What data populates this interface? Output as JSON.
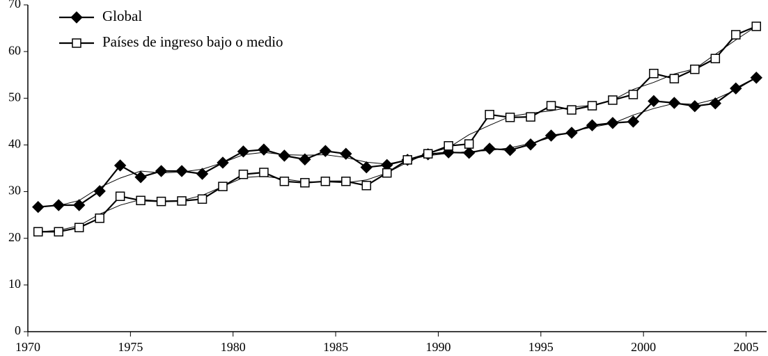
{
  "chart_data": {
    "type": "line",
    "x": [
      1970.5,
      1971.5,
      1972.5,
      1973.5,
      1974.5,
      1975.5,
      1976.5,
      1977.5,
      1978.5,
      1979.5,
      1980.5,
      1981.5,
      1982.5,
      1983.5,
      1984.5,
      1985.5,
      1986.5,
      1987.5,
      1988.5,
      1989.5,
      1990.5,
      1991.5,
      1992.5,
      1993.5,
      1994.5,
      1995.5,
      1996.5,
      1997.5,
      1998.5,
      1999.5,
      2000.5,
      2001.5,
      2002.5,
      2003.5,
      2004.5,
      2005.5
    ],
    "xlim": [
      1970,
      2006
    ],
    "xticks": [
      1970,
      1975,
      1980,
      1985,
      1990,
      1995,
      2000,
      2005
    ],
    "ylim": [
      0,
      70
    ],
    "yticks": [
      0,
      10,
      20,
      30,
      40,
      50,
      60,
      70
    ],
    "legend": "top-left",
    "series": [
      {
        "name": "Global",
        "color": "#000000",
        "marker": "diamond",
        "values": [
          26.7,
          27.1,
          27.1,
          30.1,
          35.6,
          33.1,
          34.4,
          34.4,
          33.8,
          36.2,
          38.6,
          39.0,
          37.7,
          36.9,
          38.7,
          38.1,
          35.2,
          35.7,
          36.8,
          38.0,
          38.4,
          38.3,
          39.2,
          38.9,
          40.1,
          42.0,
          42.6,
          44.2,
          44.7,
          45.0,
          49.4,
          49.0,
          48.3,
          48.9,
          52.1,
          54.4
        ]
      },
      {
        "name": "Países de ingreso bajo o medio",
        "color": "#000000",
        "marker": "square",
        "values": [
          21.4,
          21.4,
          22.3,
          24.3,
          29.0,
          28.1,
          27.9,
          28.0,
          28.4,
          31.1,
          33.7,
          34.1,
          32.2,
          31.9,
          32.2,
          32.2,
          31.3,
          34.0,
          36.8,
          38.1,
          39.8,
          40.2,
          46.5,
          45.9,
          46.0,
          48.4,
          47.5,
          48.4,
          49.6,
          50.8,
          55.3,
          54.2,
          56.2,
          58.5,
          63.6,
          65.4
        ]
      },
      {
        "color": "#000000",
        "marker": "none",
        "values": [
          26.7,
          27.0,
          28.1,
          30.9,
          32.9,
          34.4,
          34.0,
          34.2,
          34.8,
          36.2,
          37.9,
          38.4,
          37.9,
          37.8,
          37.9,
          37.3,
          36.3,
          35.9,
          36.8,
          37.7,
          38.2,
          38.6,
          38.8,
          39.4,
          40.3,
          41.6,
          42.9,
          43.8,
          44.6,
          46.4,
          47.8,
          48.9,
          48.7,
          49.8,
          51.8,
          54.4
        ]
      },
      {
        "color": "#000000",
        "marker": "none",
        "values": [
          21.4,
          21.7,
          22.7,
          25.2,
          27.1,
          28.3,
          28.0,
          28.1,
          29.2,
          31.1,
          33.0,
          33.3,
          32.7,
          32.1,
          32.1,
          31.9,
          32.5,
          34.0,
          36.3,
          38.2,
          39.4,
          42.2,
          44.2,
          46.1,
          46.8,
          47.3,
          48.1,
          48.5,
          49.6,
          51.9,
          53.4,
          55.2,
          56.3,
          59.4,
          62.5,
          65.4
        ]
      }
    ]
  }
}
